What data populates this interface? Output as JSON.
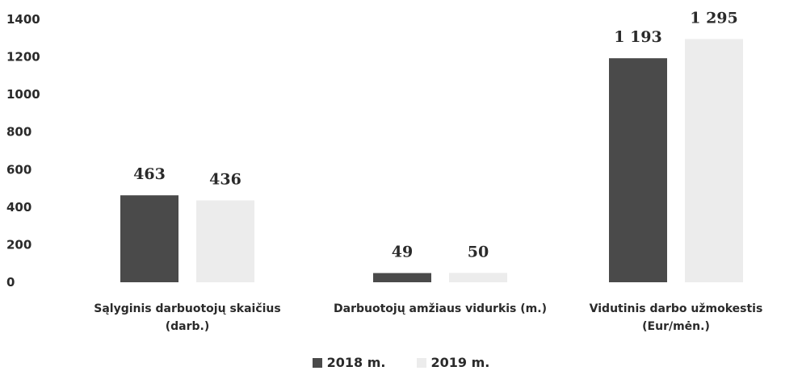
{
  "chart_data": {
    "type": "bar",
    "categories": [
      [
        "Sąlyginis darbuotojų skaičius",
        "(darb.)"
      ],
      [
        "Darbuotojų amžiaus vidurkis (m.)"
      ],
      [
        "Vidutinis darbo užmokestis",
        "(Eur/mėn.)"
      ]
    ],
    "series": [
      {
        "name": "2018 m.",
        "values": [
          463,
          49,
          1193
        ],
        "labels": [
          "463",
          "49",
          "1 193"
        ],
        "color": "#4a4a4a"
      },
      {
        "name": "2019 m.",
        "values": [
          436,
          50,
          1295
        ],
        "labels": [
          "436",
          "50",
          "1 295"
        ],
        "color": "#ececec"
      }
    ],
    "yticks": [
      "0",
      "200",
      "400",
      "600",
      "800",
      "1000",
      "1200",
      "1400"
    ],
    "ylim": [
      0,
      1400
    ],
    "grid": false,
    "legend_position": "bottom"
  }
}
